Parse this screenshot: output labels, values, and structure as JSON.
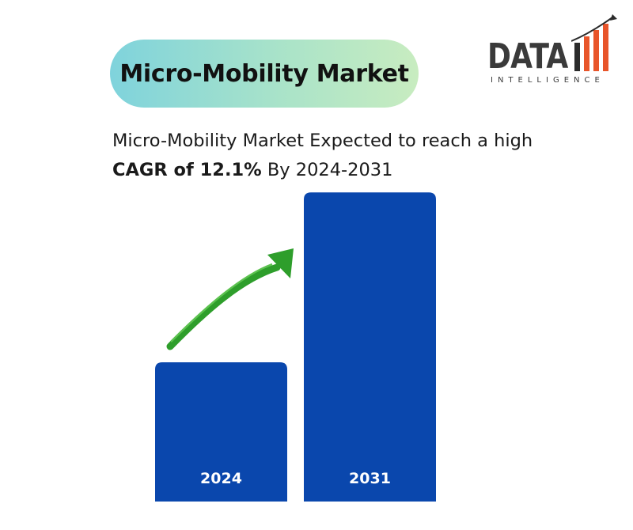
{
  "title": "Micro-Mobility Market",
  "logo": {
    "word": "DATA",
    "tagline": "INTELLIGENCE"
  },
  "headline": {
    "line1": "Micro-Mobility Market Expected to reach a high",
    "bold": "CAGR of 12.1%",
    "rest": " By 2024-2031"
  },
  "colors": {
    "bar": "#0a47ad",
    "arrow": "#2e9e2b",
    "logo_bars": [
      "#2b2b2b",
      "#e8552a",
      "#e8552a",
      "#e8552a"
    ]
  },
  "chart_data": {
    "type": "bar",
    "categories": [
      "2024",
      "2031"
    ],
    "values": [
      1.0,
      2.22
    ],
    "title": "",
    "xlabel": "",
    "ylabel": "",
    "annotation": "CAGR of 12.1%",
    "trend_arrow": "up"
  }
}
